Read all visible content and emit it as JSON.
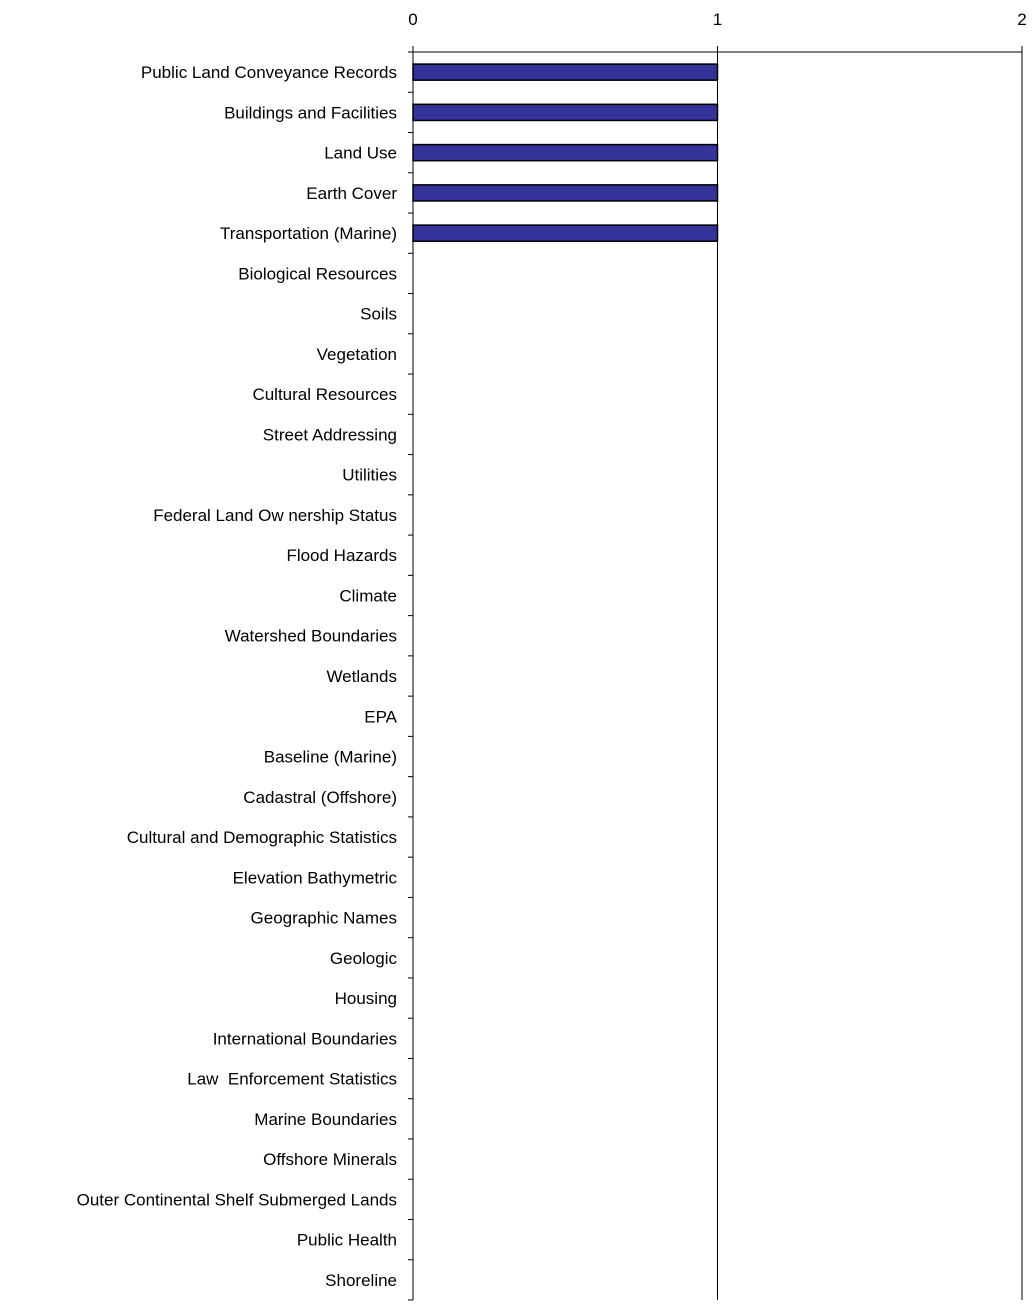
{
  "chart_data": {
    "type": "bar",
    "orientation": "horizontal",
    "x_axis_position": "top",
    "xlim": [
      0,
      2
    ],
    "x_ticks": [
      "0",
      "1",
      "2"
    ],
    "grid": "vertical",
    "legend": "none",
    "bar_color": "#333399",
    "categories": [
      "Public Land Conveyance Records",
      "Buildings and Facilities",
      "Land Use",
      "Earth Cover",
      "Transportation (Marine)",
      "Biological Resources",
      "Soils",
      "Vegetation",
      "Cultural Resources",
      "Street Addressing",
      "Utilities",
      "Federal Land Ow nership Status",
      "Flood Hazards",
      "Climate",
      "Watershed Boundaries",
      "Wetlands",
      "EPA",
      "Baseline (Marine)",
      "Cadastral (Offshore)",
      "Cultural and Demographic Statistics",
      "Elevation Bathymetric",
      "Geographic Names",
      "Geologic",
      "Housing",
      "International Boundaries",
      "Law  Enforcement Statistics",
      "Marine Boundaries",
      "Offshore Minerals",
      "Outer Continental Shelf Submerged Lands",
      "Public Health",
      "Shoreline"
    ],
    "values": [
      1,
      1,
      1,
      1,
      1,
      0,
      0,
      0,
      0,
      0,
      0,
      0,
      0,
      0,
      0,
      0,
      0,
      0,
      0,
      0,
      0,
      0,
      0,
      0,
      0,
      0,
      0,
      0,
      0,
      0,
      0
    ]
  }
}
